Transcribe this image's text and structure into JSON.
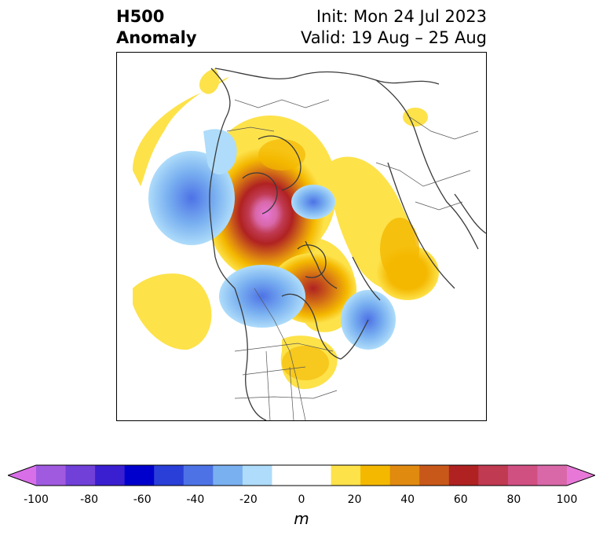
{
  "title": {
    "line1": "H500",
    "line2": "Anomaly"
  },
  "init": "Init: Mon 24 Jul 2023",
  "valid": "Valid: 19 Aug – 25 Aug",
  "colorbar": {
    "unit": "m",
    "ticks": [
      "-100",
      "-80",
      "-60",
      "-40",
      "-20",
      "0",
      "20",
      "40",
      "60",
      "80",
      "100"
    ],
    "colors": [
      "#d86ee8",
      "#a05ae0",
      "#7040d8",
      "#3a1fd0",
      "#0000cc",
      "#2a3fd8",
      "#4d72e6",
      "#79b0f0",
      "#aedcfa",
      "#ffffff",
      "#ffffff",
      "#fde24a",
      "#f4b800",
      "#e08a10",
      "#c8581a",
      "#b02222",
      "#c03a52",
      "#d05082",
      "#d868a8",
      "#e878d8"
    ],
    "extend": "both"
  }
}
